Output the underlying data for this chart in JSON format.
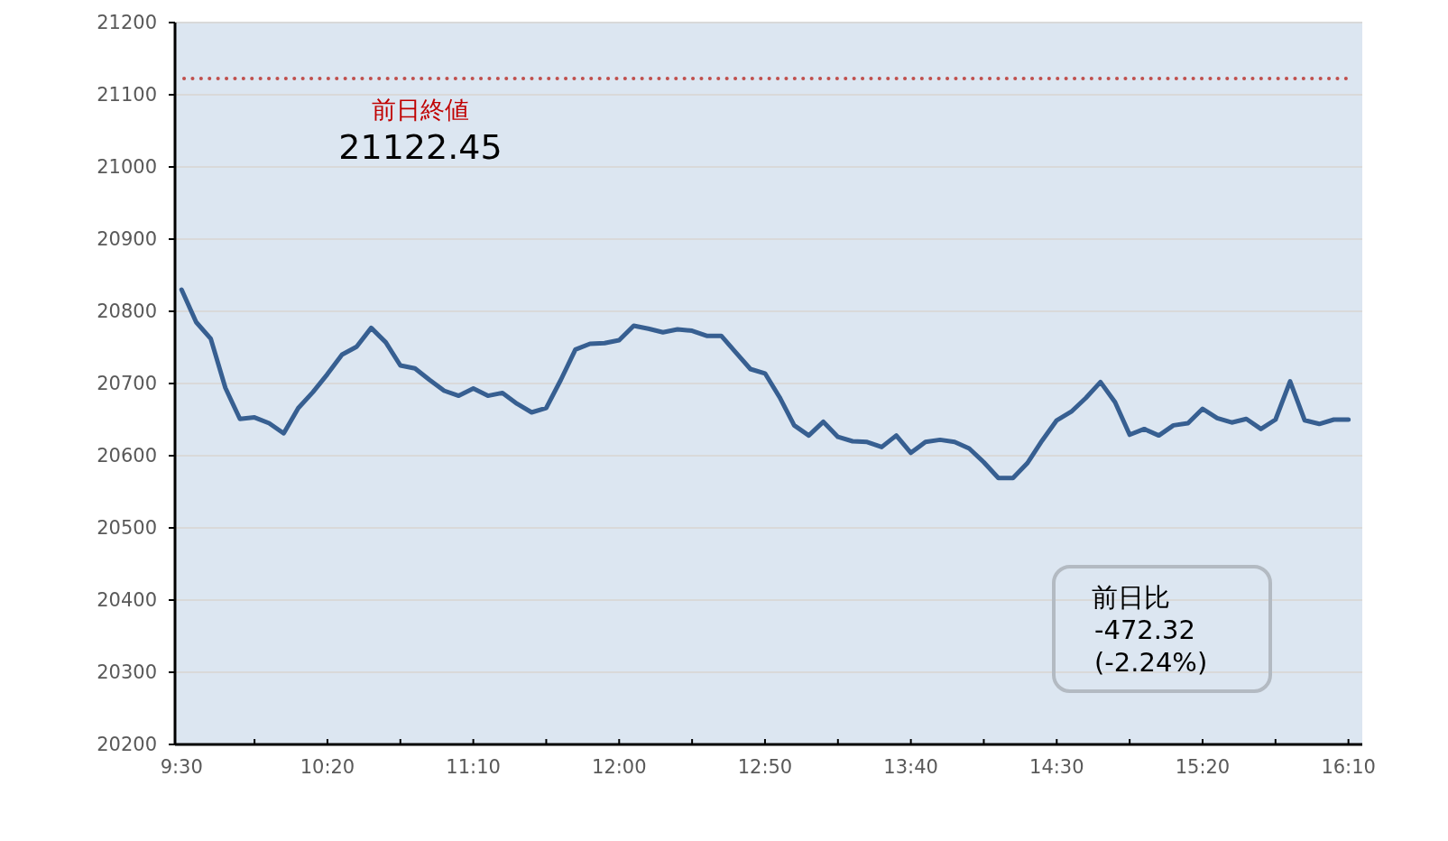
{
  "chart_data": {
    "type": "line",
    "categories": [
      "9:30",
      null,
      null,
      null,
      null,
      null,
      null,
      null,
      null,
      null,
      "10:20",
      null,
      null,
      null,
      null,
      null,
      null,
      null,
      null,
      null,
      "11:10",
      null,
      null,
      null,
      null,
      null,
      null,
      null,
      null,
      null,
      "12:00",
      null,
      null,
      null,
      null,
      null,
      null,
      null,
      null,
      null,
      "12:50",
      null,
      null,
      null,
      null,
      null,
      null,
      null,
      null,
      null,
      "13:40",
      null,
      null,
      null,
      null,
      null,
      null,
      null,
      null,
      null,
      "14:30",
      null,
      null,
      null,
      null,
      null,
      null,
      null,
      null,
      null,
      "15:20",
      null,
      null,
      null,
      null,
      null,
      null,
      null,
      null,
      null,
      "16:10"
    ],
    "series": [
      {
        "color": "#375f91",
        "values": [
          20830,
          20785,
          20762,
          20694,
          20651,
          20653,
          20645,
          20631,
          20666,
          20688,
          20713,
          20740,
          20751,
          20777,
          20757,
          20725,
          20721,
          20705,
          20690,
          20683,
          20693,
          20683,
          20687,
          20672,
          20660,
          20666,
          20705,
          20747,
          20755,
          20756,
          20760,
          20780,
          20776,
          20771,
          20775,
          20773,
          20766,
          20766,
          20743,
          20720,
          20714,
          20681,
          20642,
          20628,
          20647,
          20626,
          20620,
          20619,
          20612,
          20628,
          20604,
          20619,
          20622,
          20619,
          20610,
          20591,
          20569,
          20569,
          20590,
          20621,
          20649,
          20661,
          20680,
          20702,
          20674,
          20629,
          20637,
          20628,
          20642,
          20645,
          20665,
          20652,
          20646,
          20651,
          20637,
          20650,
          20703,
          20649,
          20644,
          20650,
          20650
        ]
      }
    ],
    "ylim": [
      20200,
      21200
    ],
    "yticks": [
      20200,
      20300,
      20400,
      20500,
      20600,
      20700,
      20800,
      20900,
      21000,
      21100,
      21200
    ],
    "grid": "y",
    "ref_lines": [
      {
        "axis": "y",
        "value": 21122.45,
        "label": "前日終値",
        "color": "#c0504d",
        "line_style": "dotted"
      }
    ],
    "annotations": [
      "21122.45",
      "前日比\n-472.32\n(-2.24%)"
    ]
  }
}
